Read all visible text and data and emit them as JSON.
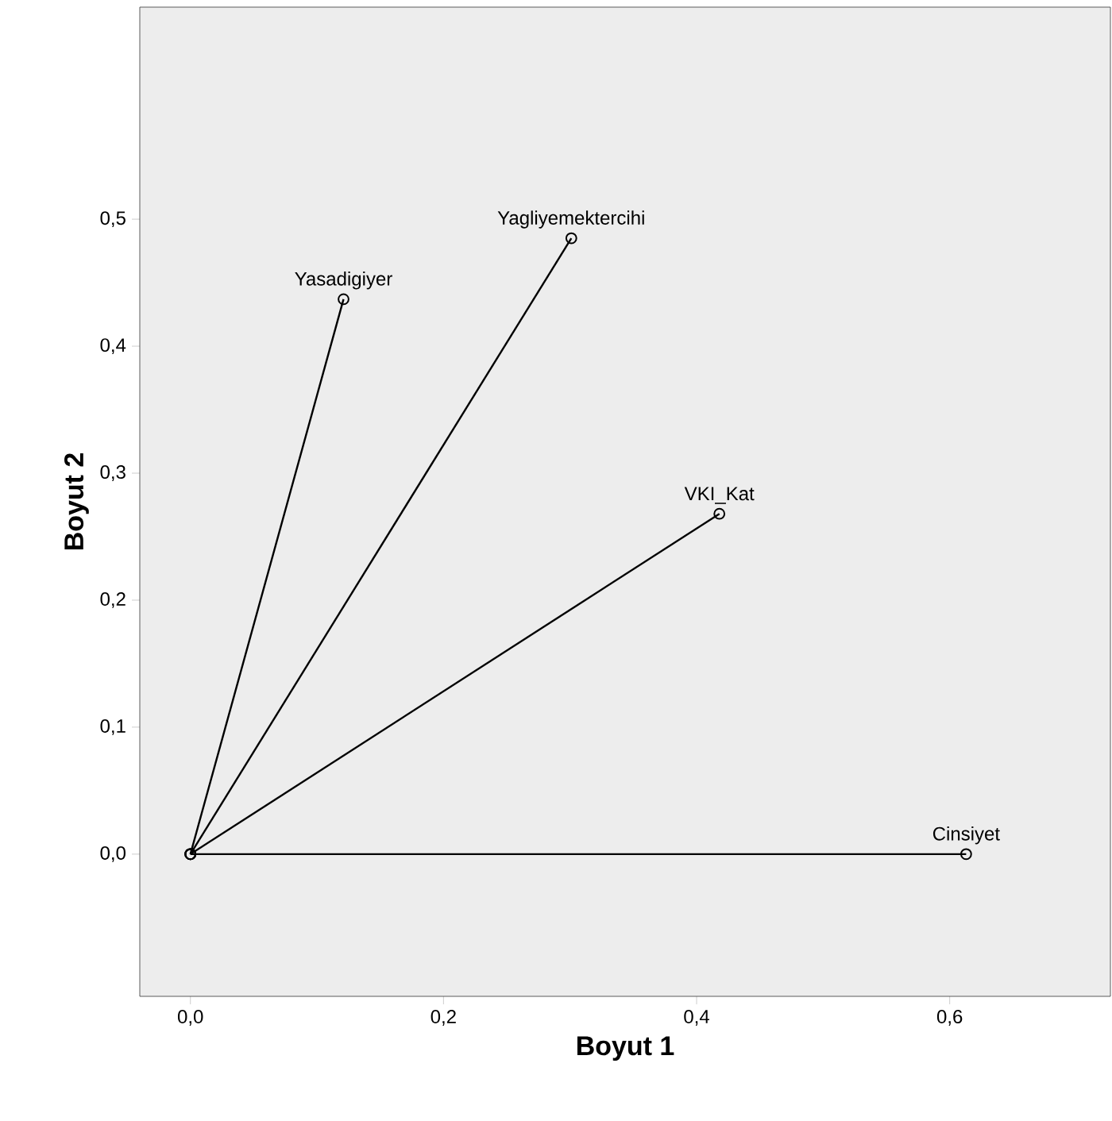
{
  "chart_data": {
    "type": "line",
    "xlabel": "Boyut 1",
    "ylabel": "Boyut 2",
    "xlim": [
      -0.04,
      0.727
    ],
    "ylim": [
      -0.112,
      0.667
    ],
    "xticks": [
      {
        "value": 0,
        "label": "0,0"
      },
      {
        "value": 0.2,
        "label": "0,2"
      },
      {
        "value": 0.4,
        "label": "0,4"
      },
      {
        "value": 0.6,
        "label": "0,6"
      }
    ],
    "yticks": [
      {
        "value": 0,
        "label": "0,0"
      },
      {
        "value": 0.1,
        "label": "0,1"
      },
      {
        "value": 0.2,
        "label": "0,2"
      },
      {
        "value": 0.3,
        "label": "0,3"
      },
      {
        "value": 0.4,
        "label": "0,4"
      },
      {
        "value": 0.5,
        "label": "0,5"
      }
    ],
    "grid": false,
    "legend": false,
    "marker": "circle",
    "line_style": "solid",
    "series": [
      {
        "name": "Yasadigiyer",
        "color": "#000000",
        "x": [
          0,
          0.121
        ],
        "values": [
          0,
          0.437
        ]
      },
      {
        "name": "Yagliyemektercihi",
        "color": "#000000",
        "x": [
          0,
          0.301
        ],
        "values": [
          0,
          0.485
        ]
      },
      {
        "name": "VKI_Kat",
        "color": "#000000",
        "x": [
          0,
          0.418
        ],
        "values": [
          0,
          0.268
        ]
      },
      {
        "name": "Cinsiyet",
        "color": "#000000",
        "x": [
          0,
          0.613
        ],
        "values": [
          0,
          0
        ]
      }
    ]
  }
}
